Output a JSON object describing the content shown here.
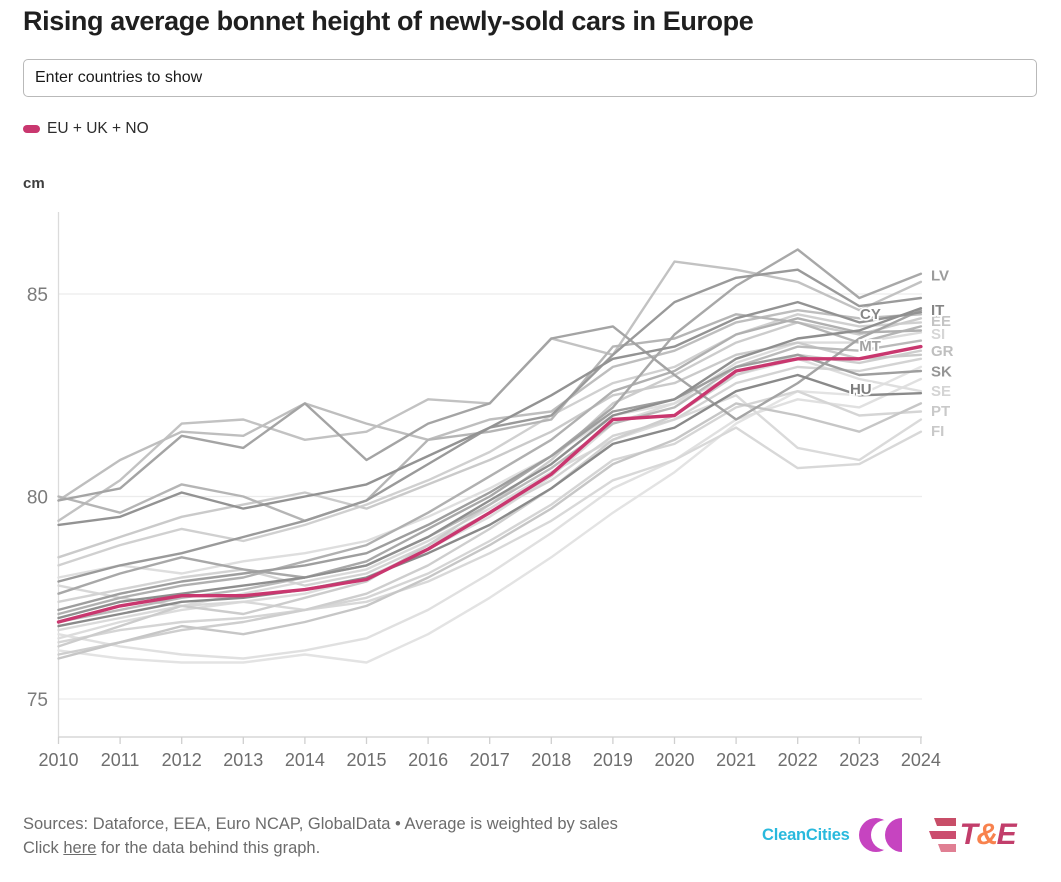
{
  "title": "Rising average bonnet height of newly-sold cars in Europe",
  "search": {
    "placeholder": "Enter countries to show",
    "value": ""
  },
  "legend": {
    "label": "EU + UK + NO",
    "color": "#c9376f"
  },
  "footer": {
    "sources_line": "Sources: Dataforce, EEA, Euro NCAP, GlobalData • Average is weighted by sales",
    "click_prefix": "Click ",
    "link_text": "here",
    "click_suffix": " for the data behind this graph."
  },
  "logos": {
    "cleancities": {
      "text": "CleanCities",
      "text_color": "#29b9dd",
      "mark_color": "#c644c0"
    },
    "te": {
      "t": "T",
      "amp": "&",
      "e": "E",
      "letter_color": "#c23e6b",
      "amp_color": "#f8824d",
      "stripe_colors": [
        "#c84e68",
        "#cb4d6e",
        "#e07f93"
      ]
    }
  },
  "chart_data": {
    "type": "line",
    "title": "Rising average bonnet height of newly-sold cars in Europe",
    "unit_label": "cm",
    "xlabel": "",
    "ylabel": "cm",
    "x": [
      2010,
      2011,
      2012,
      2013,
      2014,
      2015,
      2016,
      2017,
      2018,
      2019,
      2020,
      2021,
      2022,
      2023,
      2024
    ],
    "y_ticks": [
      85,
      80,
      75
    ],
    "ylim": [
      74,
      87
    ],
    "grid": true,
    "legend_position": "top-left",
    "highlight": {
      "name": "EU + UK + NO",
      "color": "#c9376f",
      "values": [
        76.9,
        77.3,
        77.55,
        77.55,
        77.7,
        77.95,
        78.7,
        79.6,
        80.55,
        81.9,
        82.0,
        83.1,
        83.4,
        83.4,
        83.7
      ]
    },
    "series": [
      {
        "color": "#e3e3e3",
        "values": [
          76.2,
          76.0,
          75.9,
          75.9,
          76.1,
          75.9,
          76.6,
          77.5,
          78.5,
          79.6,
          80.6,
          81.8,
          82.6,
          82.5,
          83.2
        ]
      },
      {
        "color": "#e0e0e0",
        "values": [
          76.6,
          76.3,
          76.1,
          76.0,
          76.2,
          76.5,
          77.2,
          78.1,
          79.1,
          80.2,
          80.9,
          81.9,
          82.4,
          82.2,
          82.9
        ]
      },
      {
        "name": "SE",
        "color": "#dedede",
        "values": [
          78.0,
          78.3,
          78.1,
          78.4,
          78.6,
          78.9,
          79.5,
          80.2,
          81.0,
          82.0,
          82.3,
          83.0,
          83.4,
          82.9,
          82.6
        ],
        "label": {
          "text": "SE",
          "placement": "edge",
          "color": "#d4d4d4",
          "value": 82.62
        }
      },
      {
        "name": "SI",
        "color": "#dcdcdc",
        "values": [
          76.5,
          76.9,
          77.2,
          77.4,
          77.6,
          78.0,
          78.7,
          79.5,
          80.5,
          81.8,
          82.3,
          83.3,
          83.8,
          83.8,
          84.05
        ],
        "label": {
          "text": "SI",
          "placement": "edge",
          "color": "#d6d6d6",
          "value": 84.02
        }
      },
      {
        "color": "#dadada",
        "values": [
          76.7,
          77.0,
          77.3,
          77.6,
          77.9,
          78.2,
          78.9,
          79.7,
          80.6,
          81.4,
          81.9,
          82.5,
          81.2,
          80.9,
          81.9
        ]
      },
      {
        "name": "FI",
        "color": "#d8d8d8",
        "values": [
          77.8,
          77.5,
          77.3,
          77.4,
          77.2,
          77.4,
          77.9,
          78.6,
          79.4,
          80.4,
          80.9,
          81.7,
          80.7,
          80.8,
          81.6
        ],
        "label": {
          "text": "FI",
          "placement": "edge",
          "color": "#c9c9c9",
          "value": 81.63
        }
      },
      {
        "name": "PT",
        "color": "#d5d5d5",
        "values": [
          76.4,
          76.7,
          76.9,
          77.0,
          77.2,
          77.5,
          78.1,
          78.9,
          79.8,
          80.9,
          81.3,
          82.2,
          82.6,
          82.0,
          82.1
        ],
        "label": {
          "text": "PT",
          "placement": "edge",
          "color": "#c9c9c9",
          "value": 82.12
        }
      },
      {
        "color": "#d3d3d3",
        "values": [
          77.4,
          77.7,
          78.0,
          78.2,
          77.8,
          78.1,
          78.8,
          79.6,
          80.4,
          81.5,
          81.9,
          82.8,
          83.2,
          83.1,
          83.4
        ]
      },
      {
        "color": "#d0d0d0",
        "values": [
          78.3,
          78.8,
          79.2,
          78.9,
          79.3,
          79.8,
          80.4,
          81.1,
          82.0,
          82.8,
          83.2,
          84.0,
          84.5,
          84.2,
          84.3
        ]
      },
      {
        "name": "GR",
        "color": "#cecece",
        "values": [
          76.1,
          76.4,
          76.7,
          76.9,
          77.2,
          77.6,
          78.3,
          79.2,
          80.2,
          81.4,
          82.0,
          83.0,
          83.5,
          83.3,
          83.6
        ],
        "label": {
          "text": "GR",
          "placement": "edge",
          "color": "#bfbfbf",
          "value": 83.6
        }
      },
      {
        "name": "EE",
        "color": "#cccccc",
        "values": [
          76.3,
          76.8,
          77.3,
          77.1,
          77.5,
          77.9,
          78.8,
          79.8,
          80.9,
          82.3,
          83.0,
          83.8,
          84.3,
          84.0,
          84.4
        ],
        "label": {
          "text": "EE",
          "placement": "edge",
          "color": "#c4c4c4",
          "value": 84.35
        }
      },
      {
        "color": "#cacaca",
        "values": [
          78.5,
          79.0,
          79.5,
          79.8,
          80.1,
          79.7,
          80.3,
          80.9,
          81.6,
          82.5,
          82.8,
          83.5,
          83.8,
          83.4,
          83.5
        ]
      },
      {
        "color": "#c6c6c6",
        "values": [
          76.0,
          76.4,
          76.8,
          76.6,
          76.9,
          77.3,
          78.0,
          78.8,
          79.7,
          80.8,
          81.4,
          82.3,
          82.0,
          81.6,
          82.3
        ]
      },
      {
        "color": "#c2c2c2",
        "values": [
          79.4,
          80.4,
          81.8,
          81.9,
          81.4,
          81.6,
          82.4,
          82.3,
          83.9,
          83.5,
          85.8,
          85.6,
          85.3,
          84.6,
          85.3
        ]
      },
      {
        "color": "#bebebe",
        "values": [
          79.9,
          80.9,
          81.6,
          81.5,
          82.3,
          81.8,
          81.4,
          81.9,
          82.1,
          83.2,
          83.6,
          84.3,
          84.6,
          84.4,
          84.5
        ]
      },
      {
        "name": "MT",
        "color": "#bababa",
        "values": [
          76.9,
          77.2,
          77.5,
          77.7,
          78.0,
          78.3,
          79.0,
          79.8,
          80.7,
          81.8,
          82.2,
          83.2,
          83.7,
          83.6,
          83.85
        ],
        "label": {
          "text": "MT",
          "placement": "inline",
          "color": "#a3a3a3",
          "value": 83.73,
          "year": 2023.35
        }
      },
      {
        "color": "#b5b5b5",
        "values": [
          80.0,
          79.6,
          80.3,
          80.0,
          79.4,
          79.9,
          81.4,
          81.6,
          81.9,
          83.7,
          83.9,
          84.5,
          84.3,
          83.8,
          84.2
        ]
      },
      {
        "color": "#b0b0b0",
        "values": [
          77.1,
          77.5,
          77.8,
          78.0,
          78.4,
          78.8,
          79.6,
          80.5,
          81.4,
          82.6,
          83.1,
          84.0,
          84.4,
          84.05,
          84.1
        ]
      },
      {
        "name": "LV",
        "color": "#a8a8a8",
        "values": [
          77.6,
          78.1,
          78.5,
          78.2,
          78.0,
          78.4,
          79.2,
          80.0,
          81.0,
          82.2,
          84.0,
          85.2,
          86.1,
          84.9,
          85.5
        ],
        "label": {
          "text": "LV",
          "placement": "edge",
          "color": "#9b9b9b",
          "value": 85.47
        }
      },
      {
        "color": "#a4a4a4",
        "values": [
          79.9,
          80.2,
          81.5,
          81.2,
          82.3,
          80.9,
          81.8,
          82.3,
          83.9,
          84.2,
          83.0,
          81.9,
          82.8,
          83.9,
          84.6
        ]
      },
      {
        "name": "SK",
        "color": "#9e9e9e",
        "values": [
          77.2,
          77.6,
          77.9,
          78.1,
          78.3,
          78.6,
          79.3,
          80.1,
          81.0,
          82.1,
          82.4,
          83.2,
          83.5,
          83.0,
          83.1
        ],
        "label": {
          "text": "SK",
          "placement": "edge",
          "color": "#959595",
          "value": 83.1
        }
      },
      {
        "color": "#9a9a9a",
        "values": [
          77.9,
          78.3,
          78.6,
          79.0,
          79.4,
          79.9,
          80.8,
          81.7,
          82.0,
          83.5,
          84.8,
          85.4,
          85.6,
          84.7,
          84.9
        ]
      },
      {
        "name": "CY",
        "color": "#939393",
        "values": [
          79.3,
          79.5,
          80.1,
          79.7,
          80.0,
          80.3,
          81.0,
          81.7,
          82.5,
          83.4,
          83.7,
          84.4,
          84.8,
          84.3,
          84.55
        ],
        "label": {
          "text": "CY",
          "placement": "inline",
          "color": "#878787",
          "value": 84.52,
          "year": 2023.35
        }
      },
      {
        "name": "IT",
        "color": "#8f8f8f",
        "values": [
          77.0,
          77.4,
          77.6,
          77.8,
          78.0,
          78.3,
          79.0,
          79.9,
          80.8,
          82.0,
          82.4,
          83.4,
          83.9,
          84.1,
          84.65
        ],
        "label": {
          "text": "IT",
          "placement": "edge",
          "color": "#858585",
          "value": 84.62
        }
      },
      {
        "name": "HU",
        "color": "#8a8a8a",
        "values": [
          76.8,
          77.1,
          77.4,
          77.5,
          77.7,
          78.0,
          78.6,
          79.3,
          80.2,
          81.3,
          81.7,
          82.6,
          83.0,
          82.5,
          82.55
        ],
        "label": {
          "text": "HU",
          "placement": "inline",
          "color": "#7d7d7d",
          "value": 82.67,
          "year": 2023.2
        }
      }
    ]
  }
}
